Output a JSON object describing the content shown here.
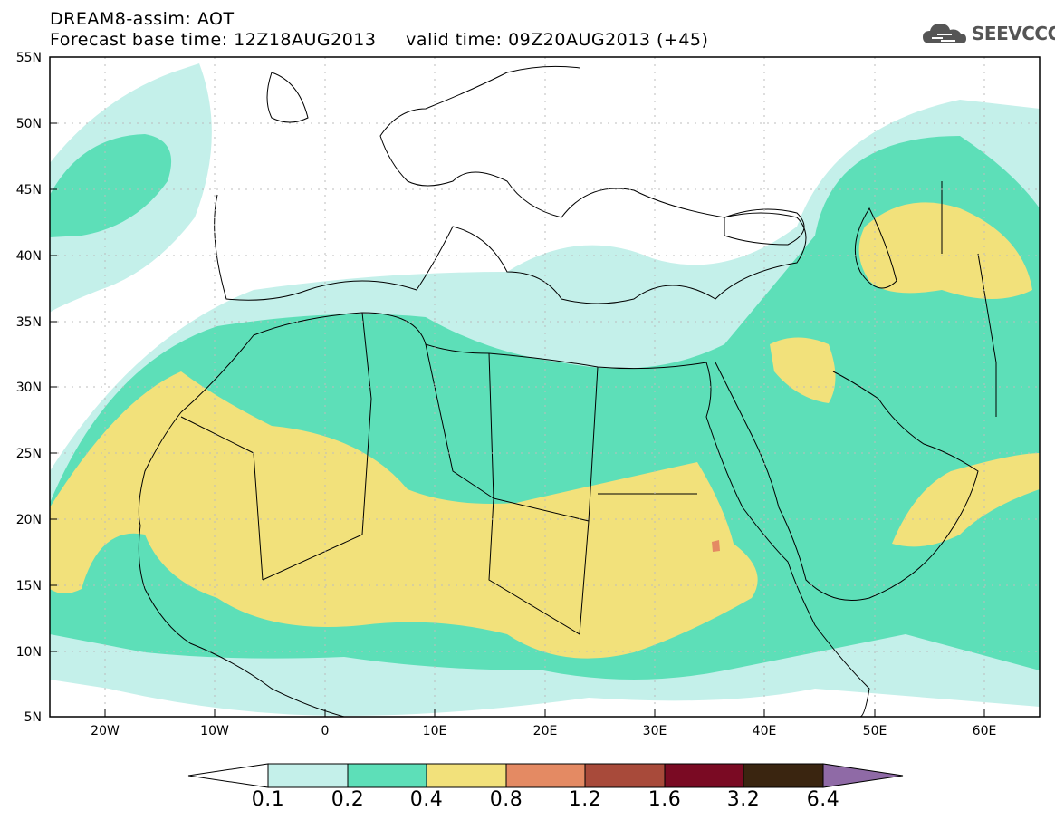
{
  "header": {
    "title_line1": "DREAM8-assim: AOT",
    "title_line2": "Forecast base time: 12Z18AUG2013     valid time: 09Z20AUG2013 (+45)",
    "logo_text": "SEEVCCC"
  },
  "map": {
    "lat_labels": [
      "55N",
      "50N",
      "45N",
      "40N",
      "35N",
      "30N",
      "25N",
      "20N",
      "15N",
      "10N",
      "5N"
    ],
    "lon_labels": [
      "20W",
      "10W",
      "0",
      "10E",
      "20E",
      "30E",
      "40E",
      "50E",
      "60E"
    ],
    "extent": {
      "lon": [
        -25,
        65
      ],
      "lat": [
        5,
        55
      ]
    }
  },
  "colorbar": {
    "labels": [
      "0.1",
      "0.2",
      "0.4",
      "0.8",
      "1.2",
      "1.6",
      "3.2",
      "6.4"
    ],
    "colors": [
      "#ffffff",
      "#c4f0ea",
      "#5ddfb8",
      "#f2e17b",
      "#e48a63",
      "#a84a3a",
      "#7a0a23",
      "#3a2510",
      "#8f6aa6"
    ]
  }
}
